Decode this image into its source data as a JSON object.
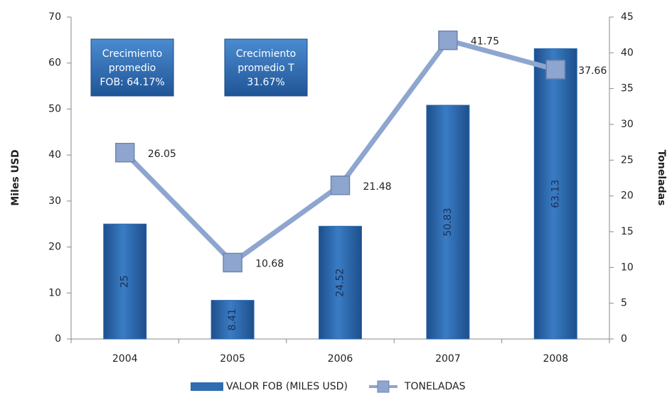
{
  "chart_data": {
    "type": "combo",
    "y_label": "Miles USD",
    "y2_label": "Toneladas",
    "categories": [
      "2004",
      "2005",
      "2006",
      "2007",
      "2008"
    ],
    "series": [
      {
        "name": "VALOR FOB (MILES USD)",
        "type": "bar",
        "color": "#2f6cb0",
        "values": [
          25,
          8.41,
          24.52,
          50.83,
          63.13
        ]
      },
      {
        "name": "TONELADAS",
        "type": "line",
        "axis": "y2",
        "color": "#8ea6cf",
        "values": [
          26.05,
          10.68,
          21.48,
          41.75,
          37.66
        ]
      }
    ],
    "ylim": [
      0,
      70
    ],
    "yticks": [
      0,
      10,
      20,
      30,
      40,
      50,
      60,
      70
    ],
    "y2lim": [
      0,
      45
    ],
    "y2ticks": [
      0,
      5,
      10,
      15,
      20,
      25,
      30,
      35,
      40,
      45
    ],
    "annotations": [
      {
        "lines": [
          "Crecimiento",
          "promedio",
          "FOB: 64.17%"
        ]
      },
      {
        "lines": [
          "Crecimiento",
          "promedio T",
          "31.67%"
        ]
      }
    ],
    "legend": "bottom"
  }
}
